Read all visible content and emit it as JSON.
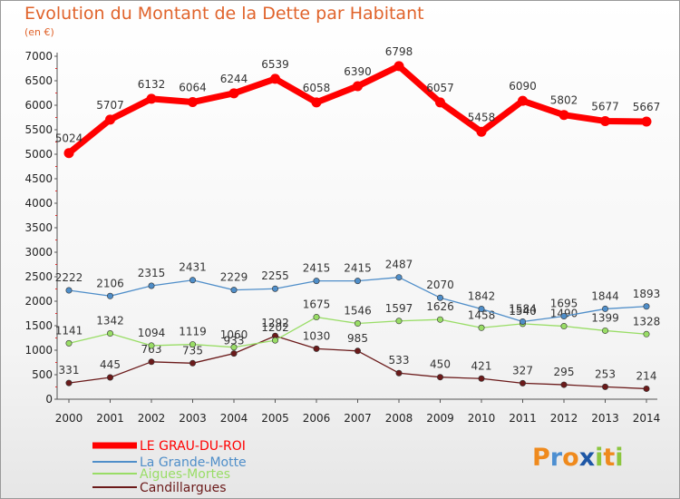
{
  "chart_data": {
    "type": "line",
    "title": "Evolution du Montant de la Dette par Habitant",
    "subtitle": "(en €)",
    "x": [
      "2000",
      "2001",
      "2002",
      "2003",
      "2004",
      "2005",
      "2006",
      "2007",
      "2008",
      "2009",
      "2010",
      "2011",
      "2012",
      "2013",
      "2014"
    ],
    "ylim": [
      0,
      7000
    ],
    "yticks": [
      0,
      500,
      1000,
      1500,
      2000,
      2500,
      3000,
      3500,
      4000,
      4500,
      5000,
      5500,
      6000,
      6500,
      7000
    ],
    "grid": false,
    "legend_position": "bottom-left",
    "series": [
      {
        "name": "LE GRAU-DU-ROI",
        "color": "#ff0000",
        "values": [
          5024,
          5707,
          6132,
          6064,
          6244,
          6539,
          6058,
          6390,
          6798,
          6057,
          5458,
          6090,
          5802,
          5677,
          5667
        ]
      },
      {
        "name": "La Grande-Motte",
        "color": "#4f8ec9",
        "values": [
          2222,
          2106,
          2315,
          2431,
          2229,
          2255,
          2415,
          2415,
          2487,
          2070,
          1842,
          1584,
          1695,
          1844,
          1893
        ]
      },
      {
        "name": "Aigues-Mortes",
        "color": "#99dd66",
        "values": [
          1141,
          1342,
          1094,
          1119,
          1060,
          1202,
          1675,
          1546,
          1597,
          1626,
          1458,
          1540,
          1490,
          1399,
          1328
        ]
      },
      {
        "name": "Candillargues",
        "color": "#6b1a1a",
        "values": [
          331,
          445,
          763,
          735,
          933,
          1292,
          1030,
          985,
          533,
          450,
          421,
          327,
          295,
          253,
          214
        ]
      }
    ]
  },
  "logo": {
    "letters": [
      {
        "ch": "P",
        "color": "#ef8a1d"
      },
      {
        "ch": "r",
        "color": "#4d8fd1"
      },
      {
        "ch": "o",
        "color": "#ef8a1d"
      },
      {
        "ch": "x",
        "color": "#1e57a6"
      },
      {
        "ch": "i",
        "color": "#8cc63f"
      },
      {
        "ch": "t",
        "color": "#ef8a1d"
      },
      {
        "ch": "i",
        "color": "#8cc63f"
      }
    ]
  }
}
